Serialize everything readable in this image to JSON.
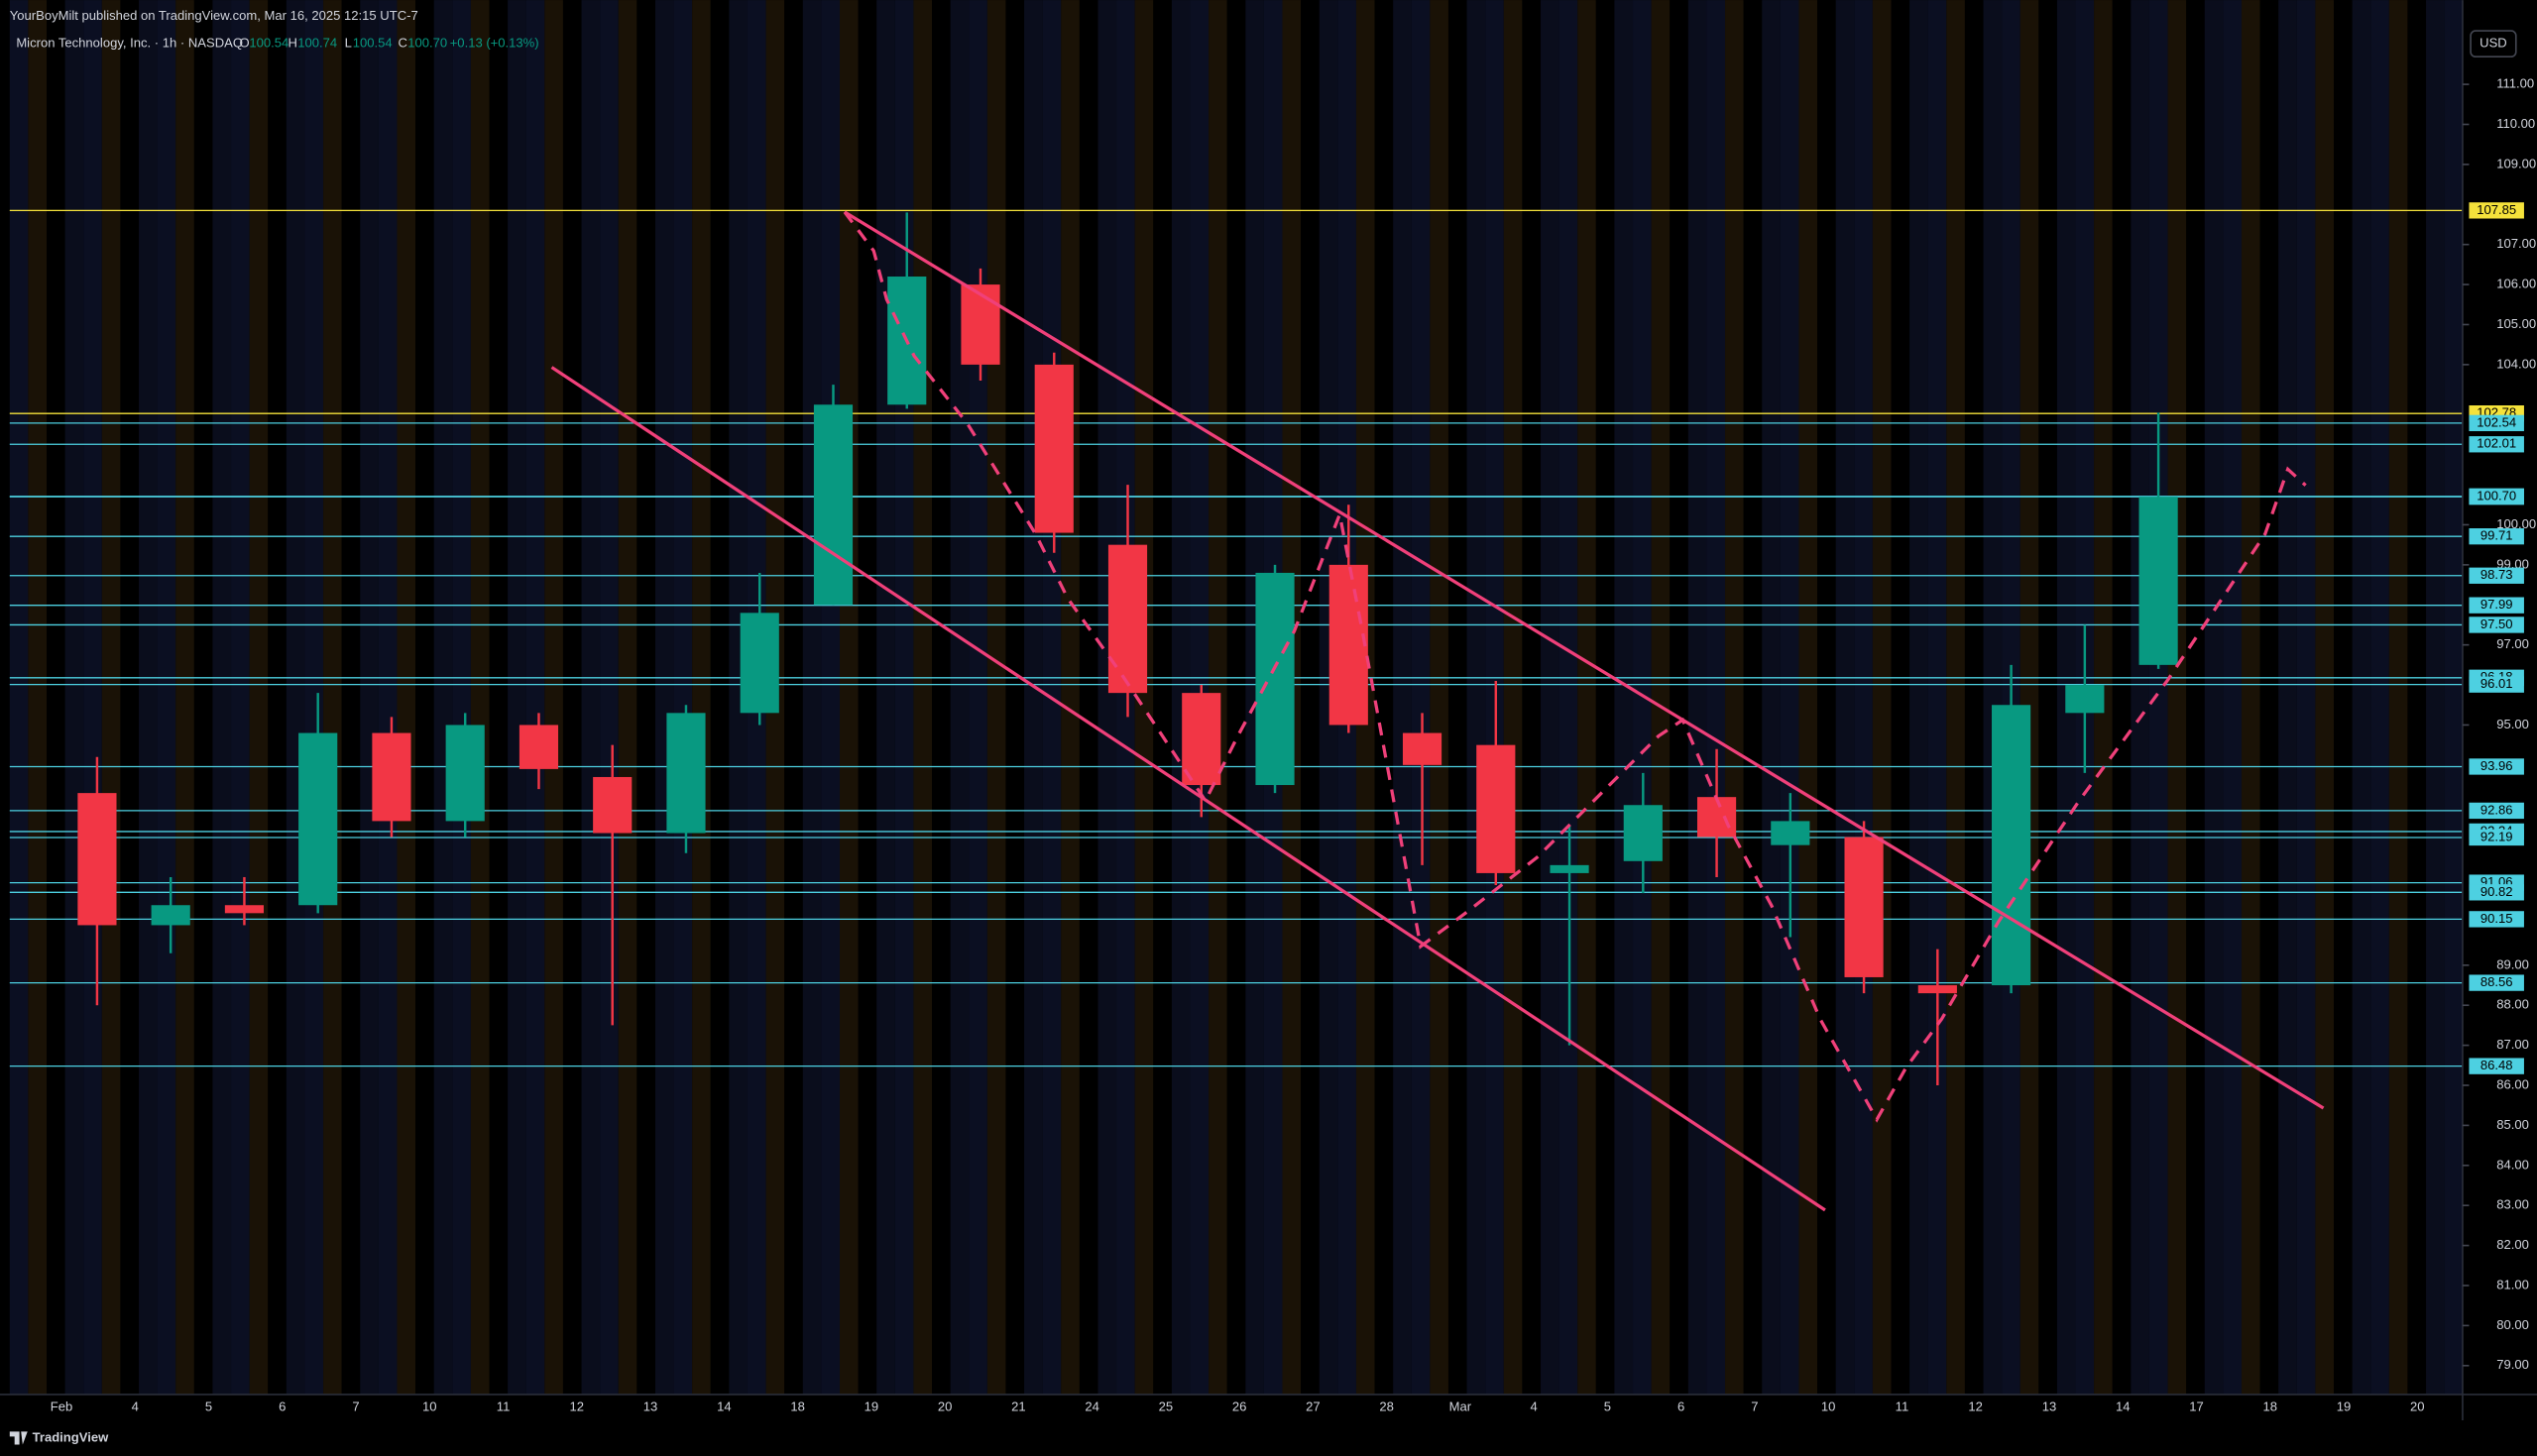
{
  "header": {
    "publisher": "YourBoyMilt published on TradingView.com, Mar 16, 2025 12:15 UTC-7",
    "symbol": "Micron Technology, Inc. · 1h · NASDAQ",
    "o_label": "O",
    "o": "100.54",
    "h_label": "H",
    "h": "100.74",
    "l_label": "L",
    "l": "100.54",
    "c_label": "C",
    "c": "100.70",
    "change": "+0.13 (+0.13%)",
    "currency": "USD"
  },
  "footer": {
    "brand": "TradingView"
  },
  "chart_data": {
    "type": "candlestick",
    "up_color": "#089981",
    "down_color": "#f23645",
    "categories": [
      "Feb",
      "4",
      "5",
      "6",
      "7",
      "10",
      "11",
      "12",
      "13",
      "14",
      "18",
      "19",
      "20",
      "21",
      "24",
      "25",
      "26",
      "27",
      "28",
      "Mar",
      "4",
      "5",
      "6",
      "7",
      "10",
      "11",
      "12",
      "13",
      "14",
      "17",
      "18",
      "19",
      "20"
    ],
    "series": [
      {
        "name": "Open",
        "values": [
          93.3,
          90.0,
          90.5,
          90.5,
          94.8,
          92.6,
          95.0,
          93.7,
          92.3,
          95.3,
          98.0,
          103.0,
          106.0,
          104.0,
          99.5,
          95.8,
          93.5,
          99.0,
          94.8,
          94.5,
          91.3,
          91.6,
          93.2,
          92.0,
          92.2,
          88.5,
          88.5,
          95.3,
          96.5,
          null,
          null,
          null,
          null
        ]
      },
      {
        "name": "High",
        "values": [
          94.2,
          91.2,
          91.2,
          95.8,
          95.2,
          95.3,
          95.3,
          94.5,
          95.5,
          98.8,
          103.5,
          107.8,
          106.4,
          104.3,
          101.0,
          96.0,
          99.0,
          100.5,
          95.3,
          96.1,
          92.5,
          93.8,
          94.4,
          93.3,
          92.6,
          89.4,
          96.5,
          97.5,
          102.8,
          null,
          null,
          null,
          null
        ]
      },
      {
        "name": "Low",
        "values": [
          88.0,
          89.3,
          90.0,
          90.3,
          92.2,
          92.2,
          93.4,
          87.5,
          91.8,
          95.0,
          98.0,
          102.9,
          103.6,
          99.3,
          95.2,
          92.7,
          93.3,
          94.8,
          91.5,
          91.0,
          87.0,
          90.8,
          91.2,
          89.7,
          88.3,
          86.0,
          88.3,
          93.8,
          96.4,
          null,
          null,
          null,
          null
        ]
      },
      {
        "name": "Close",
        "values": [
          90.0,
          90.5,
          90.3,
          94.8,
          92.6,
          95.0,
          93.9,
          92.3,
          95.3,
          97.8,
          103.0,
          106.2,
          104.0,
          99.8,
          95.8,
          93.5,
          98.8,
          95.0,
          94.0,
          91.3,
          91.5,
          93.0,
          92.2,
          92.6,
          88.7,
          88.3,
          95.5,
          96.0,
          100.7,
          null,
          null,
          null,
          null
        ]
      }
    ],
    "levels": [
      {
        "value": 107.85,
        "label": "107.85",
        "color": "#f5e23b"
      },
      {
        "value": 102.78,
        "label": "102.78",
        "color": "#f5e23b"
      },
      {
        "value": 102.54,
        "label": "102.54",
        "color": "#4dd0e1"
      },
      {
        "value": 102.01,
        "label": "102.01",
        "color": "#4dd0e1"
      },
      {
        "value": 100.71,
        "label": "100.71",
        "color": "#4dd0e1"
      },
      {
        "value": 100.7,
        "label": "100.70",
        "color": "#4dd0e1"
      },
      {
        "value": 99.71,
        "label": "99.71",
        "color": "#4dd0e1"
      },
      {
        "value": 98.73,
        "label": "98.73",
        "color": "#4dd0e1"
      },
      {
        "value": 97.99,
        "label": "97.99",
        "color": "#4dd0e1"
      },
      {
        "value": 97.5,
        "label": "97.50",
        "color": "#4dd0e1"
      },
      {
        "value": 96.18,
        "label": "96.18",
        "color": "#4dd0e1"
      },
      {
        "value": 96.01,
        "label": "96.01",
        "color": "#4dd0e1"
      },
      {
        "value": 93.96,
        "label": "93.96",
        "color": "#4dd0e1"
      },
      {
        "value": 92.86,
        "label": "92.86",
        "color": "#4dd0e1"
      },
      {
        "value": 92.34,
        "label": "92.34",
        "color": "#4dd0e1"
      },
      {
        "value": 92.19,
        "label": "92.19",
        "color": "#4dd0e1"
      },
      {
        "value": 91.06,
        "label": "91.06",
        "color": "#4dd0e1"
      },
      {
        "value": 90.82,
        "label": "90.82",
        "color": "#4dd0e1"
      },
      {
        "value": 90.15,
        "label": "90.15",
        "color": "#4dd0e1"
      },
      {
        "value": 88.56,
        "label": "88.56",
        "color": "#4dd0e1"
      },
      {
        "value": 86.48,
        "label": "86.48",
        "color": "#4dd0e1"
      }
    ],
    "ylim": [
      78.28,
      111.65
    ],
    "yticks": [
      {
        "value": 79,
        "label": "79.00"
      },
      {
        "value": 80,
        "label": "80.00"
      },
      {
        "value": 81,
        "label": "81.00"
      },
      {
        "value": 82,
        "label": "82.00"
      },
      {
        "value": 83,
        "label": "83.00"
      },
      {
        "value": 84,
        "label": "84.00"
      },
      {
        "value": 85,
        "label": "85.00"
      },
      {
        "value": 86,
        "label": "86.00"
      },
      {
        "value": 87,
        "label": "87.00"
      },
      {
        "value": 88,
        "label": "88.00"
      },
      {
        "value": 89,
        "label": "89.00"
      },
      {
        "value": 95,
        "label": "95.00"
      },
      {
        "value": 97,
        "label": "97.00"
      },
      {
        "value": 99,
        "label": "99.00"
      },
      {
        "value": 100,
        "label": "100.00"
      },
      {
        "value": 104,
        "label": "104.00"
      },
      {
        "value": 105,
        "label": "105.00"
      },
      {
        "value": 106,
        "label": "106.00"
      },
      {
        "value": 107,
        "label": "107.00"
      },
      {
        "value": 109,
        "label": "109.00"
      },
      {
        "value": 110,
        "label": "110.00"
      },
      {
        "value": 111,
        "label": "111.00"
      }
    ]
  }
}
